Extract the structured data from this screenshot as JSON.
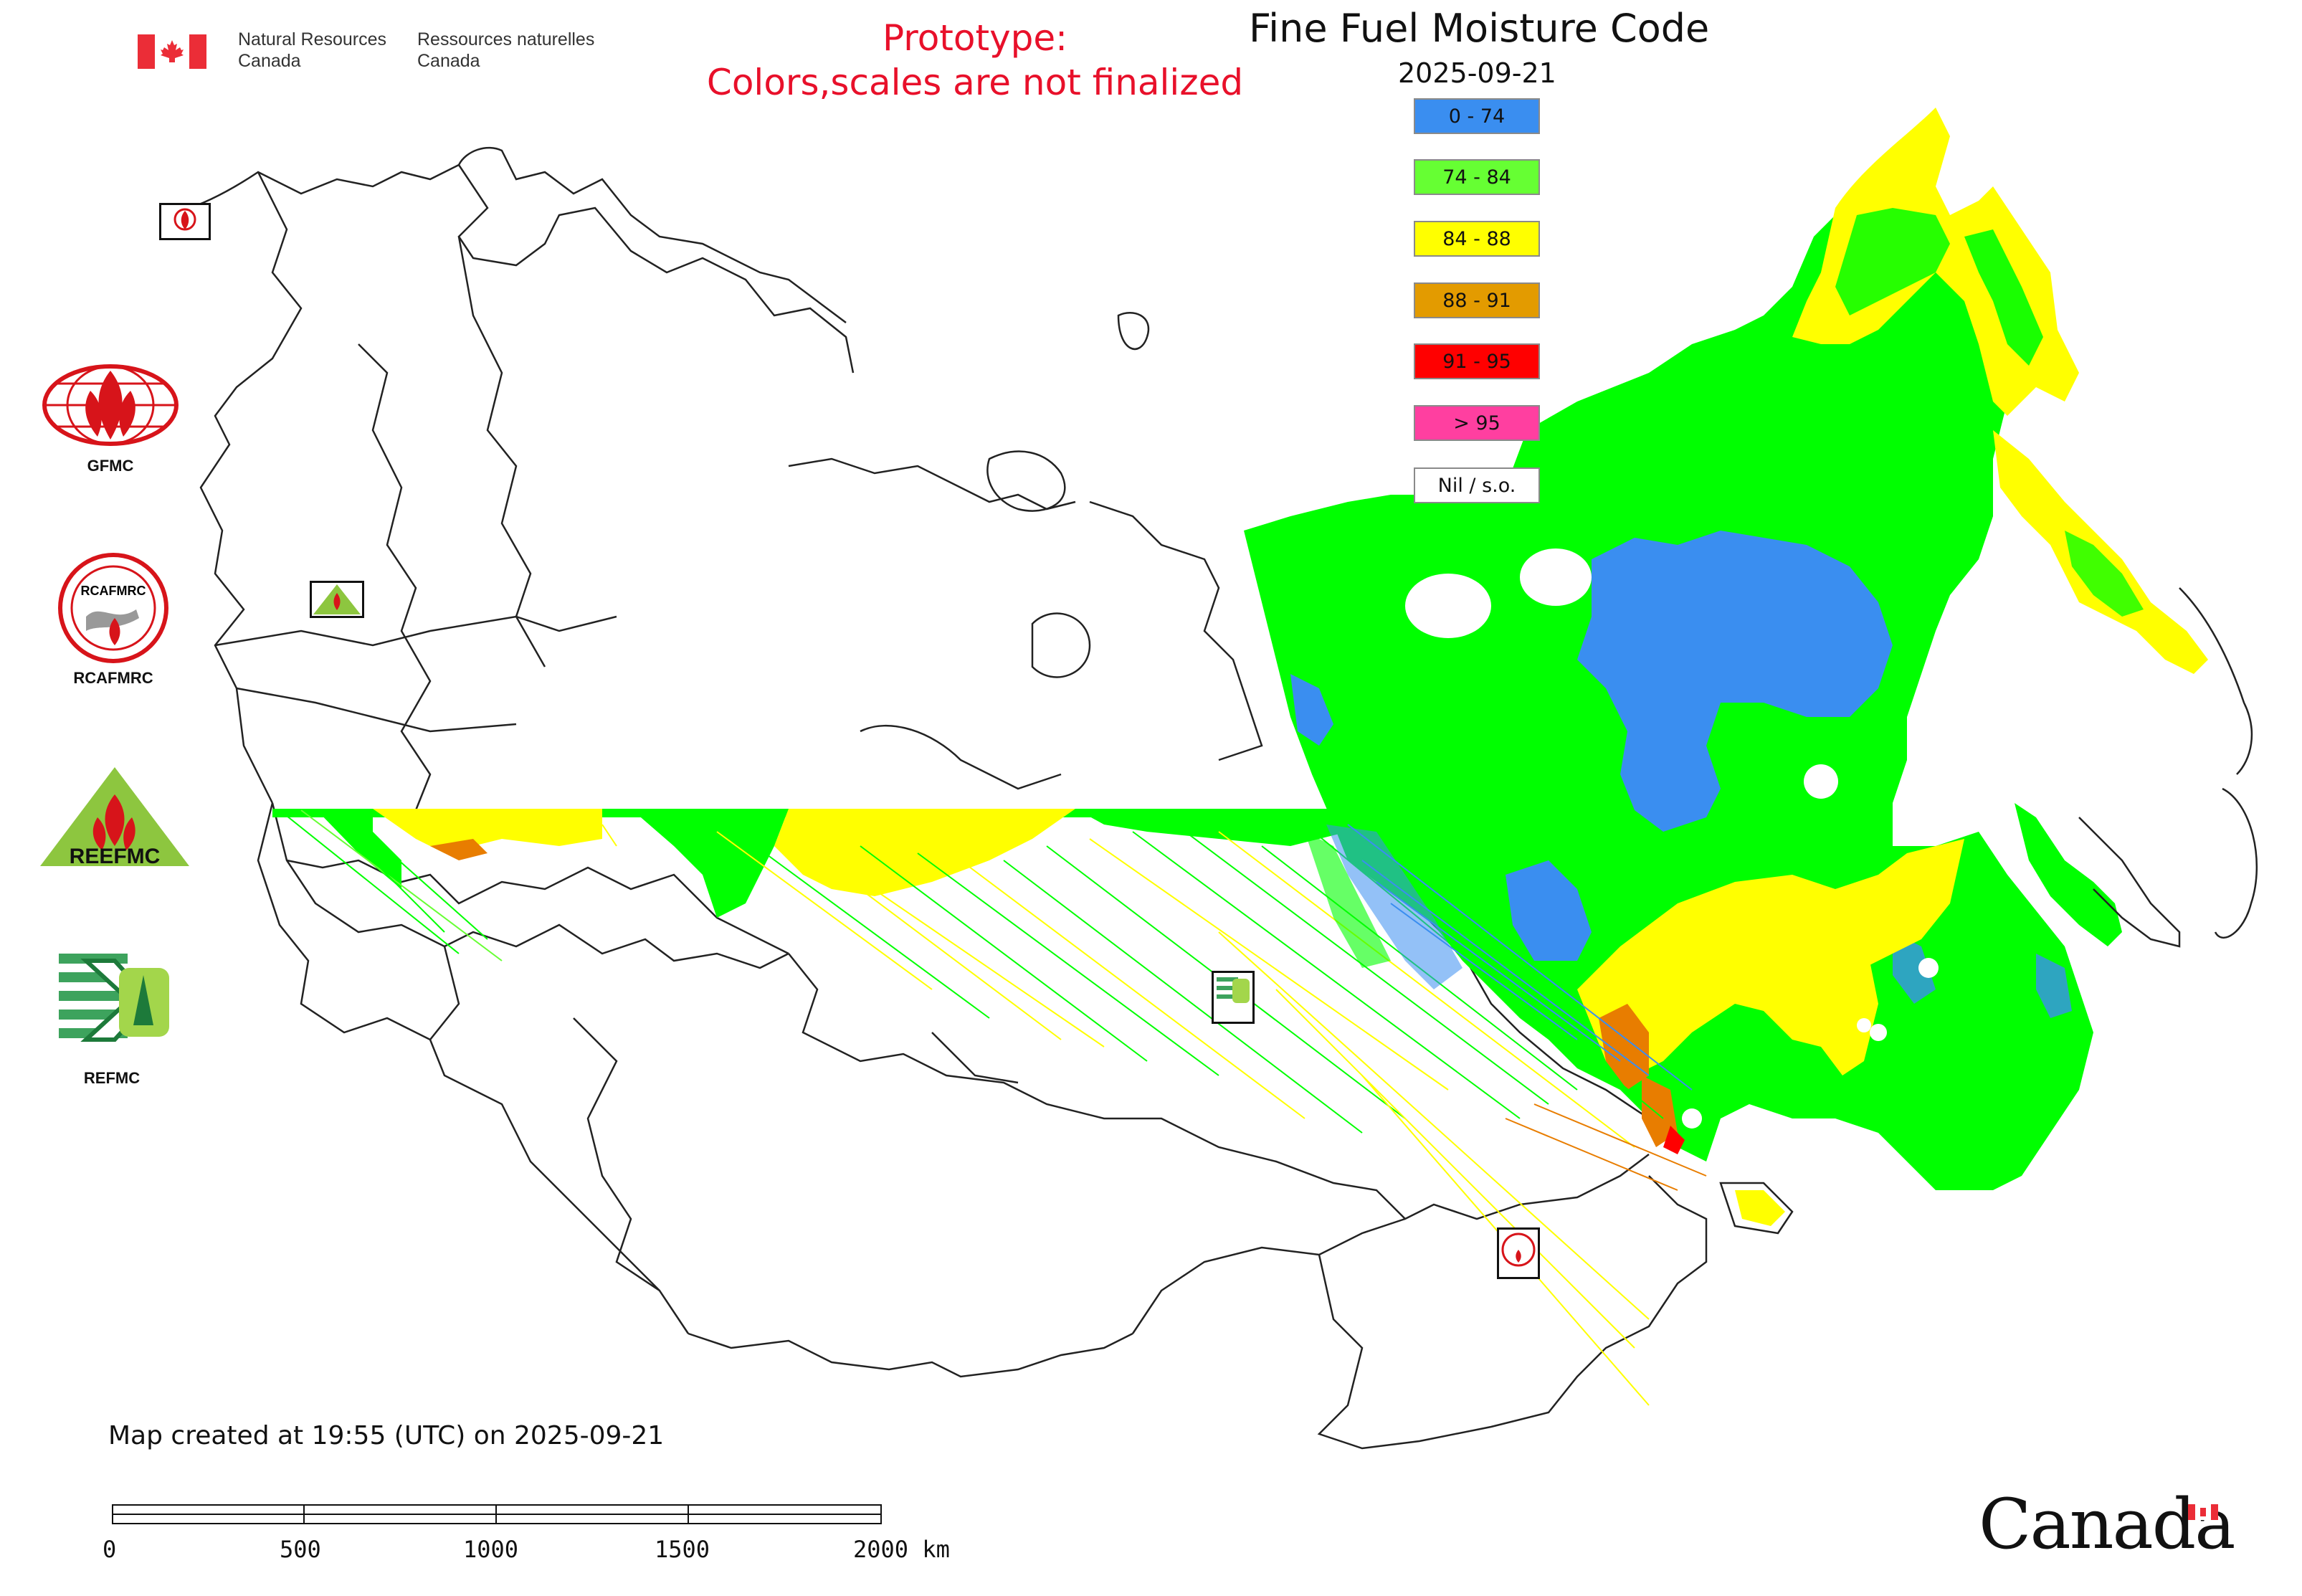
{
  "header": {
    "gov_en_line1": "Natural Resources",
    "gov_en_line2": "Canada",
    "gov_fr_line1": "Ressources naturelles",
    "gov_fr_line2": "Canada",
    "prototype_line1": "Prototype:",
    "prototype_line2": "Colors,scales are not finalized",
    "map_title": "Fine Fuel Moisture Code",
    "map_date": "2025-09-21"
  },
  "legend": {
    "items": [
      {
        "label": "0 - 74",
        "color": "#3a8ef0"
      },
      {
        "label": "74 - 84",
        "color": "#66ff33"
      },
      {
        "label": "84 - 88",
        "color": "#ffff00"
      },
      {
        "label": "88 - 91",
        "color": "#e39b00"
      },
      {
        "label": "91 - 95",
        "color": "#ff0000"
      },
      {
        "label": "> 95",
        "color": "#ff3fa0"
      },
      {
        "label": "Nil / s.o.",
        "color": "#ffffff"
      }
    ]
  },
  "logos": {
    "gfmc": "GFMC",
    "rcafmrc": "RCAFMRC",
    "reefmc": "REEFMC",
    "refmc": "REFMC"
  },
  "footer": {
    "created": "Map created at 19:55 (UTC) on 2025-09-21",
    "scale_labels": [
      "0",
      "500",
      "1000",
      "1500",
      "2000 km"
    ],
    "canada_wordmark": "Canada"
  },
  "colors": {
    "fmc_green": "#00ff00",
    "fmc_blue": "#3a8ef0",
    "fmc_yellow": "#ffff00",
    "fmc_orange": "#e87d00",
    "prototype_red": "#e8102a",
    "flag_red": "#eb2d37"
  }
}
